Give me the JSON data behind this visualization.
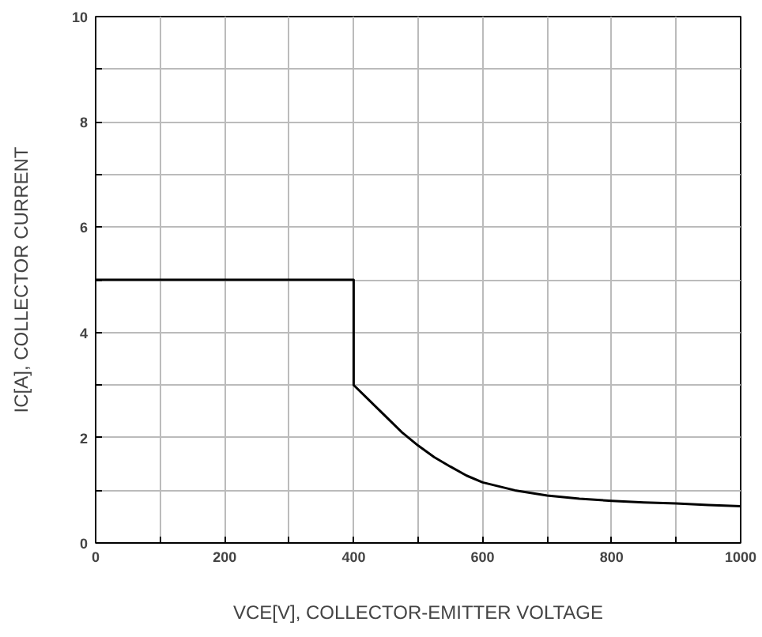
{
  "chart_data": {
    "type": "line",
    "xlabel": "VCE[V], COLLECTOR-EMITTER VOLTAGE",
    "ylabel": "IC[A], COLLECTOR CURRENT",
    "x": [
      0,
      400,
      400,
      425,
      450,
      475,
      500,
      525,
      550,
      575,
      600,
      650,
      700,
      750,
      800,
      850,
      900,
      950,
      1000
    ],
    "series": [
      {
        "color": "#000000",
        "values": [
          5,
          5,
          3,
          2.7,
          2.4,
          2.1,
          1.85,
          1.63,
          1.45,
          1.28,
          1.15,
          1.0,
          0.9,
          0.84,
          0.8,
          0.77,
          0.75,
          0.72,
          0.7
        ]
      }
    ],
    "xlim": [
      0,
      1000
    ],
    "ylim": [
      0,
      10
    ],
    "xticks": [
      0,
      {
        "value": 100,
        "label": null
      },
      200,
      {
        "value": 300,
        "label": null
      },
      400,
      {
        "value": 500,
        "label": null
      },
      600,
      {
        "value": 700,
        "label": null
      },
      800,
      {
        "value": 900,
        "label": null
      },
      1000
    ],
    "yticks": [
      0,
      {
        "value": 1,
        "label": null
      },
      2,
      {
        "value": 3,
        "label": null
      },
      4,
      {
        "value": 5,
        "label": null
      },
      6,
      {
        "value": 7,
        "label": null
      },
      8,
      {
        "value": 9,
        "label": null
      },
      10
    ],
    "grid": true,
    "marker": "none",
    "line_style": "solid"
  }
}
